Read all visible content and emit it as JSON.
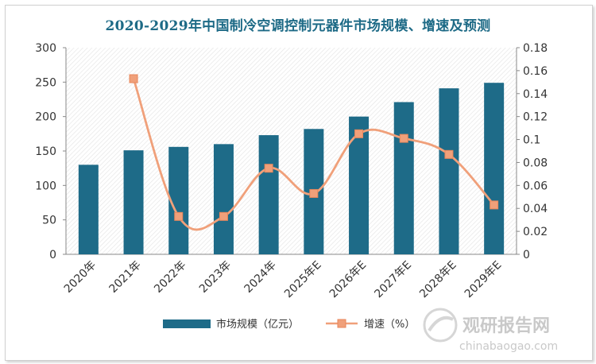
{
  "chart_data": {
    "type": "bar",
    "title": "2020-2029年中国制冷空调控制元器件市场规模、增速及预测",
    "categories": [
      "2020年",
      "2021年",
      "2022年",
      "2023年",
      "2024年",
      "2025年E",
      "2026年E",
      "2027年E",
      "2028年E",
      "2029年E"
    ],
    "series": [
      {
        "name": "市场规模（亿元）",
        "type": "bar",
        "axis": "left",
        "color": "#1e6b88",
        "values": [
          130,
          151,
          156,
          160,
          173,
          182,
          200,
          221,
          241,
          249
        ]
      },
      {
        "name": "增速（%）",
        "type": "line",
        "axis": "right",
        "color": "#f0a07a",
        "values": [
          null,
          0.153,
          0.033,
          0.033,
          0.075,
          0.053,
          0.105,
          0.101,
          0.087,
          0.043
        ]
      }
    ],
    "y_left": {
      "min": 0,
      "max": 300,
      "ticks": [
        "0",
        "50",
        "100",
        "150",
        "200",
        "250",
        "300"
      ]
    },
    "y_right": {
      "min": 0,
      "max": 0.18,
      "ticks": [
        "0",
        "0.02",
        "0.04",
        "0.06",
        "0.08",
        "0.1",
        "0.12",
        "0.14",
        "0.16",
        "0.18"
      ]
    },
    "grid": false,
    "legend": "bottom"
  },
  "watermark": {
    "brand": "观研报告网",
    "url": "chinabaogao.com"
  }
}
